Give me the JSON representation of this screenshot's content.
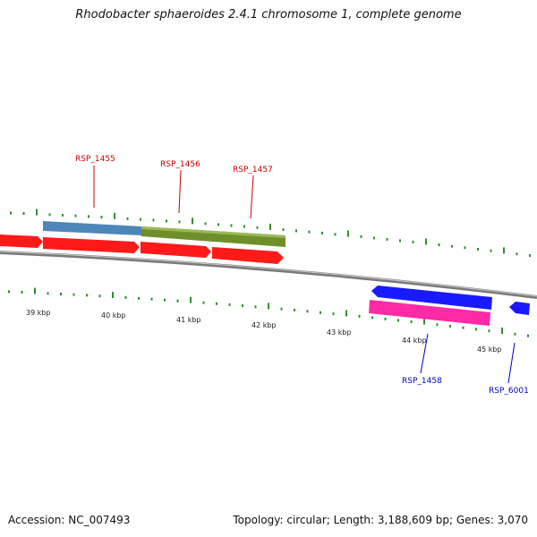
{
  "title": "Rhodobacter sphaeroides 2.4.1 chromosome 1, complete genome",
  "accession_text": "Accession: NC_007493",
  "summary_text": "Topology: circular; Length: 3,188,609 bp; Genes: 3,070",
  "colors": {
    "backbone": "#8a8a8a",
    "tick": "#2f8f2f",
    "forward_cds": "#ff1a1a",
    "reverse_cds": "#1a1aff",
    "rna": "#ff2aa6",
    "feature_blue": "#4f86b8",
    "feature_olive": "#6f8f2a",
    "label_forward": "#cc0000",
    "label_reverse": "#0000bb"
  },
  "scale": {
    "labels": [
      "39 kbp",
      "40 kbp",
      "41 kbp",
      "42 kbp",
      "43 kbp",
      "44 kbp",
      "45 kbp"
    ]
  },
  "genes": [
    {
      "name": "RSP_1455",
      "strand": "forward"
    },
    {
      "name": "RSP_1456",
      "strand": "forward"
    },
    {
      "name": "RSP_1457",
      "strand": "forward"
    },
    {
      "name": "RSP_1458",
      "strand": "reverse"
    },
    {
      "name": "RSP_6001",
      "strand": "reverse"
    }
  ]
}
